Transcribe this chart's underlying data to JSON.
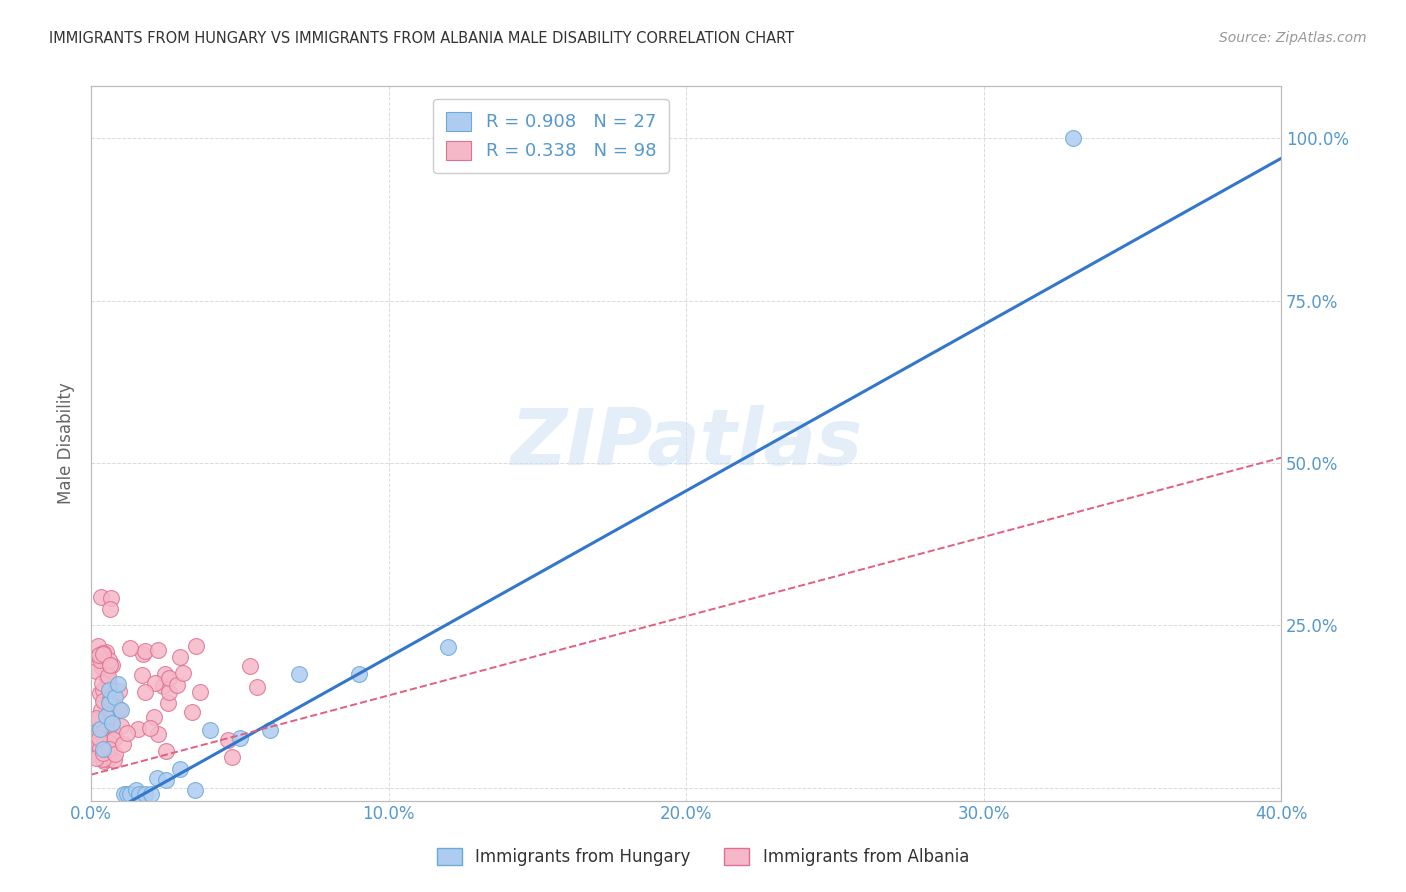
{
  "title": "IMMIGRANTS FROM HUNGARY VS IMMIGRANTS FROM ALBANIA MALE DISABILITY CORRELATION CHART",
  "source": "Source: ZipAtlas.com",
  "ylabel": "Male Disability",
  "xlim": [
    0.0,
    0.4
  ],
  "ylim": [
    -0.02,
    1.08
  ],
  "ytick_values": [
    0.0,
    0.25,
    0.5,
    0.75,
    1.0
  ],
  "right_ytick_labels": [
    "",
    "25.0%",
    "50.0%",
    "75.0%",
    "100.0%"
  ],
  "xtick_values": [
    0.0,
    0.1,
    0.2,
    0.3,
    0.4
  ],
  "xtick_labels": [
    "0.0%",
    "10.0%",
    "20.0%",
    "30.0%",
    "40.0%"
  ],
  "hungary_color": "#aeccf0",
  "hungary_edge_color": "#6aaad4",
  "albania_color": "#f5b8c8",
  "albania_edge_color": "#e07090",
  "hungary_line_color": "#3377cc",
  "albania_line_color": "#e06080",
  "legend_hungary_R": "0.908",
  "legend_hungary_N": "27",
  "legend_albania_R": "0.338",
  "legend_albania_N": "98",
  "watermark": "ZIPatlas",
  "background_color": "#ffffff",
  "grid_color": "#cccccc",
  "title_color": "#333333",
  "axis_tick_color": "#5599cc",
  "hungary_regression_slope": 2.56,
  "hungary_regression_intercept": -0.055,
  "albania_regression_slope": 1.22,
  "albania_regression_intercept": 0.02
}
